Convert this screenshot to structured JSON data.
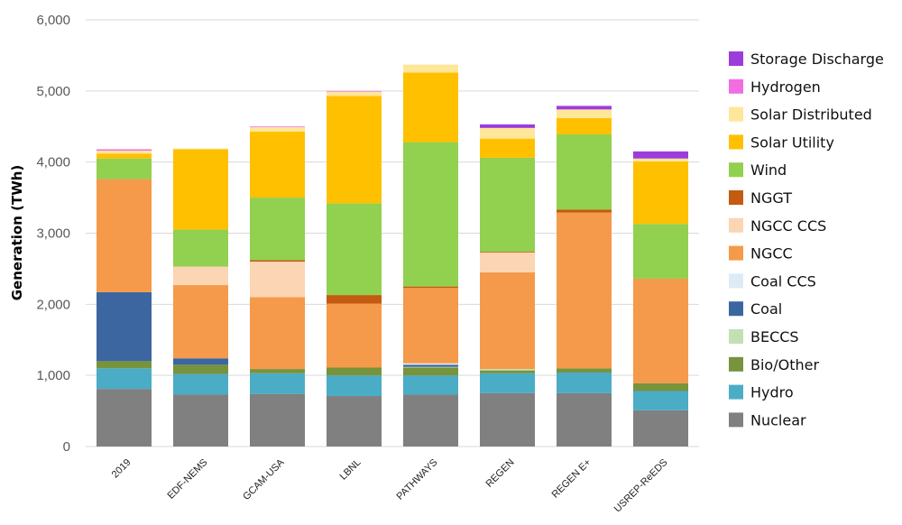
{
  "chart_data": {
    "type": "bar",
    "stacked": true,
    "ylabel": "Generation (TWh)",
    "ylim": [
      0,
      6000
    ],
    "yticks": [
      "0",
      "1,000",
      "2,000",
      "3,000",
      "4,000",
      "5,000",
      "6,000"
    ],
    "ytick_values": [
      0,
      1000,
      2000,
      3000,
      4000,
      5000,
      6000
    ],
    "grid": true,
    "legend_position": "right",
    "categories": [
      "2019",
      "EDF-NEMS",
      "GCAM-USA",
      "LBNL",
      "PATHWAYS",
      "REGEN",
      "REGEN E+",
      "USREP-ReEDS"
    ],
    "series": [
      {
        "name": "Nuclear",
        "color": "#808080",
        "values": [
          810,
          730,
          740,
          710,
          730,
          750,
          750,
          510
        ]
      },
      {
        "name": "Hydro",
        "color": "#4BACC6",
        "values": [
          290,
          290,
          290,
          290,
          270,
          280,
          290,
          270
        ]
      },
      {
        "name": "Bio/Other",
        "color": "#77933C",
        "values": [
          100,
          130,
          60,
          110,
          110,
          40,
          60,
          110
        ]
      },
      {
        "name": "BECCS",
        "color": "#C4E0B2",
        "values": [
          0,
          0,
          0,
          0,
          10,
          20,
          0,
          0
        ]
      },
      {
        "name": "Coal",
        "color": "#3C66A0",
        "values": [
          970,
          90,
          0,
          0,
          30,
          0,
          0,
          0
        ]
      },
      {
        "name": "Coal CCS",
        "color": "#DDEBF7",
        "values": [
          0,
          0,
          0,
          0,
          20,
          0,
          0,
          0
        ]
      },
      {
        "name": "NGCC",
        "color": "#F59A4A",
        "values": [
          1590,
          1030,
          1010,
          900,
          1060,
          1360,
          2190,
          1470
        ]
      },
      {
        "name": "NGCC CCS",
        "color": "#FCD5B4",
        "values": [
          0,
          260,
          500,
          0,
          0,
          280,
          0,
          0
        ]
      },
      {
        "name": "NGGT",
        "color": "#C55A11",
        "values": [
          0,
          0,
          20,
          120,
          20,
          10,
          40,
          0
        ]
      },
      {
        "name": "Wind",
        "color": "#92D050",
        "values": [
          290,
          520,
          880,
          1290,
          2030,
          1320,
          1060,
          770
        ]
      },
      {
        "name": "Solar Utility",
        "color": "#FFC000",
        "values": [
          70,
          1130,
          930,
          1510,
          980,
          270,
          230,
          880
        ]
      },
      {
        "name": "Solar Distributed",
        "color": "#FFE699",
        "values": [
          40,
          10,
          60,
          60,
          110,
          150,
          120,
          40
        ]
      },
      {
        "name": "Hydrogen",
        "color": "#F06EE0",
        "values": [
          20,
          0,
          10,
          10,
          0,
          0,
          0,
          0
        ]
      },
      {
        "name": "Storage Discharge",
        "color": "#9C3CDB",
        "values": [
          0,
          0,
          0,
          0,
          0,
          50,
          50,
          100
        ]
      }
    ],
    "legend_order": [
      "Storage Discharge",
      "Hydrogen",
      "Solar Distributed",
      "Solar Utility",
      "Wind",
      "NGGT",
      "NGCC CCS",
      "NGCC",
      "Coal CCS",
      "Coal",
      "BECCS",
      "Bio/Other",
      "Hydro",
      "Nuclear"
    ]
  }
}
